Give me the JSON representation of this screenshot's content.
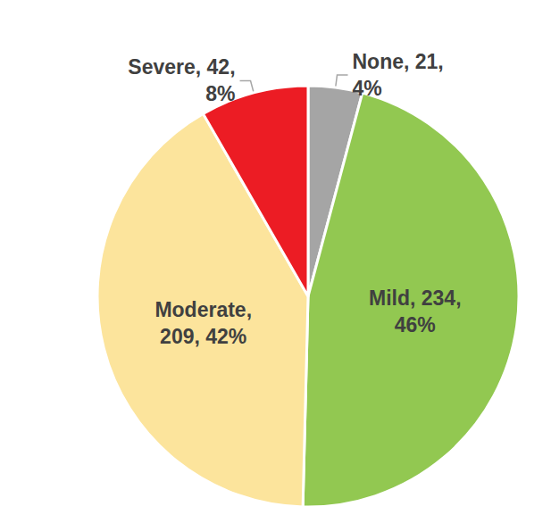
{
  "chart_data": {
    "type": "pie",
    "categories": [
      "None",
      "Mild",
      "Moderate",
      "Severe"
    ],
    "values": [
      21,
      234,
      209,
      42
    ],
    "value_labels": [
      "None, 21,\n4%",
      "Mild, 234,\n46%",
      "Moderate,\n209, 42%",
      "Severe, 42,\n8%"
    ],
    "colors": [
      "#a5a5a5",
      "#92c851",
      "#fce49c",
      "#ec1c24"
    ],
    "data_labels": true
  }
}
